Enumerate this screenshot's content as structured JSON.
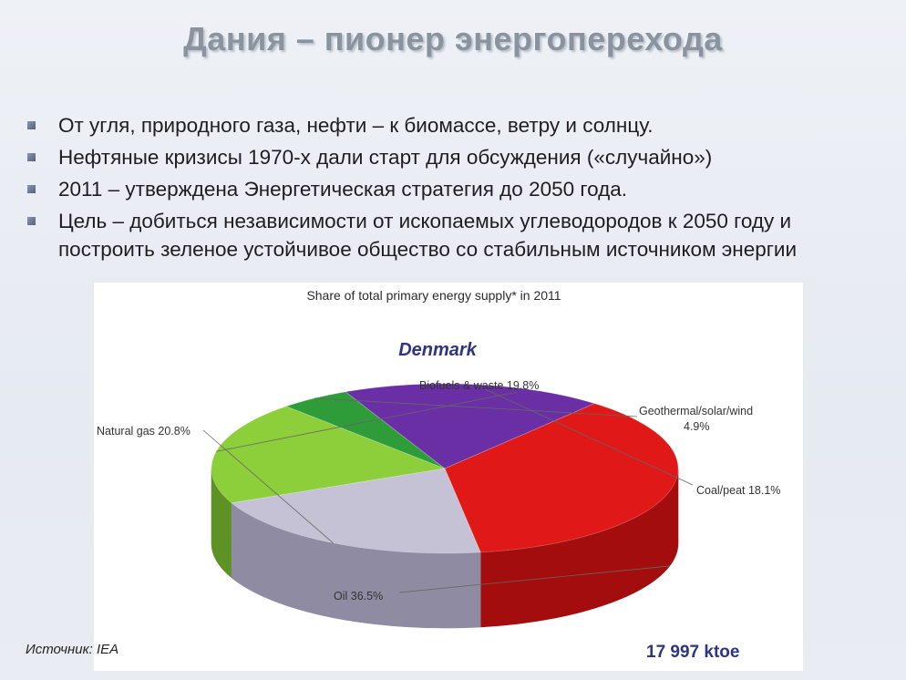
{
  "slide": {
    "title": "Дания – пионер энергоперехода",
    "bullets": [
      "От угля, природного газа, нефти – к биомассе, ветру и солнцу.",
      "Нефтяные кризисы 1970-х дали старт для обсуждения («случайно»)",
      "2011 – утверждена Энергетическая стратегия до 2050 года.",
      "Цель – добиться независимости от ископаемых углеводородов к 2050 году и построить зеленое устойчивое общество со стабильным источником энергии"
    ],
    "source": "Источник: IEA",
    "total": "17 997 ktoe"
  },
  "chart_data": {
    "type": "pie",
    "title": "Share of total primary energy supply* in 2011",
    "subtitle": "Denmark",
    "categories": [
      "Biofuels & waste",
      "Geothermal/solar/wind",
      "Coal/peat",
      "Oil",
      "Natural gas"
    ],
    "values": [
      19.8,
      4.9,
      18.1,
      36.5,
      20.8
    ],
    "labels": [
      "Biofuels & waste 19.8%",
      "Geothermal/solar/wind",
      "4.9%",
      "Coal/peat 18.1%",
      "Oil 36.5%",
      "Natural gas 20.8%"
    ],
    "colors": {
      "Biofuels & waste": "#8ccf3a",
      "Geothermal/solar/wind": "#2f9c3a",
      "Coal/peat": "#6a2fa4",
      "Oil": "#e01818",
      "Natural gas": "#c5c2d6"
    },
    "side_colors": {
      "Biofuels & waste": "#5f9224",
      "Geothermal/solar/wind": "#1f6b27",
      "Coal/peat": "#3d1a66",
      "Oil": "#a30d0d",
      "Natural gas": "#8e8ba3"
    },
    "style": "3d-tilted"
  }
}
